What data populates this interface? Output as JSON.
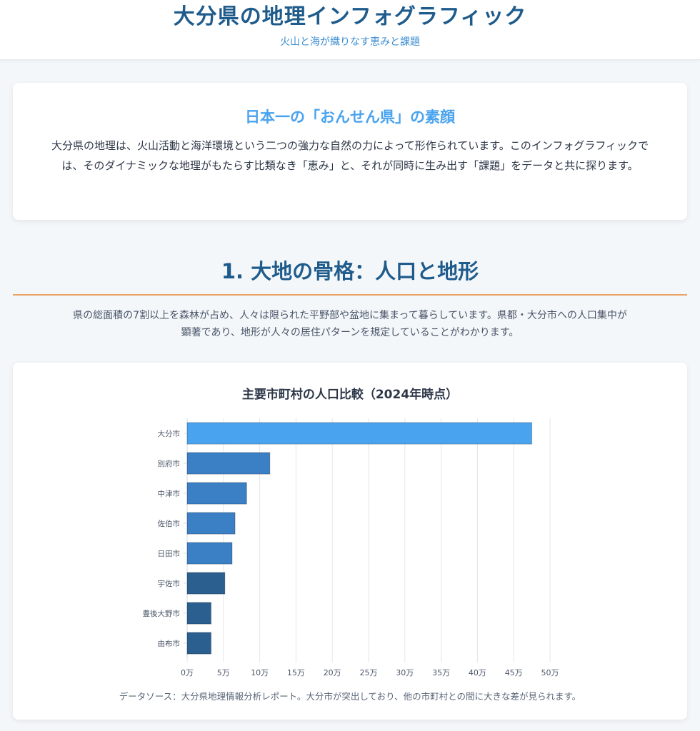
{
  "header": {
    "title": "大分県の地理インフォグラフィック",
    "subtitle": "火山と海が織りなす恵みと課題"
  },
  "intro": {
    "heading": "日本一の「おんせん県」の素顔",
    "body": "大分県の地理は、火山活動と海洋環境という二つの強力な自然の力によって形作られています。このインフォグラフィックでは、そのダイナミックな地理がもたらす比類なき「恵み」と、それが同時に生み出す「課題」をデータと共に探ります。"
  },
  "section1": {
    "title": "1. 大地の骨格：人口と地形",
    "description": "県の総面積の7割以上を森林が占め、人々は限られた平野部や盆地に集まって暮らしています。県都・大分市への人口集中が顕著であり、地形が人々の居住パターンを規定していることがわかります。"
  },
  "chart_data": {
    "type": "bar",
    "orientation": "horizontal",
    "title": "主要市町村の人口比較（2024年時点）",
    "categories": [
      "大分市",
      "別府市",
      "中津市",
      "佐伯市",
      "日田市",
      "宇佐市",
      "豊後大野市",
      "由布市"
    ],
    "values": [
      475000,
      114000,
      82000,
      66000,
      62000,
      52000,
      33000,
      33000
    ],
    "xlim": [
      0,
      500000
    ],
    "xticks": [
      0,
      50000,
      100000,
      150000,
      200000,
      250000,
      300000,
      350000,
      400000,
      450000,
      500000
    ],
    "xtick_labels": [
      "0万",
      "5万",
      "10万",
      "15万",
      "20万",
      "25万",
      "30万",
      "35万",
      "40万",
      "45万",
      "50万"
    ],
    "colors": [
      "#4aa3ee",
      "#3b7fc4",
      "#3b7fc4",
      "#3b7fc4",
      "#3b7fc4",
      "#2a5f8f",
      "#2a5f8f",
      "#2a5f8f"
    ],
    "grid": true,
    "note": "データソース：大分県地理情報分析レポート。大分市が突出しており、他の市町村との間に大きな差が見られます。"
  }
}
